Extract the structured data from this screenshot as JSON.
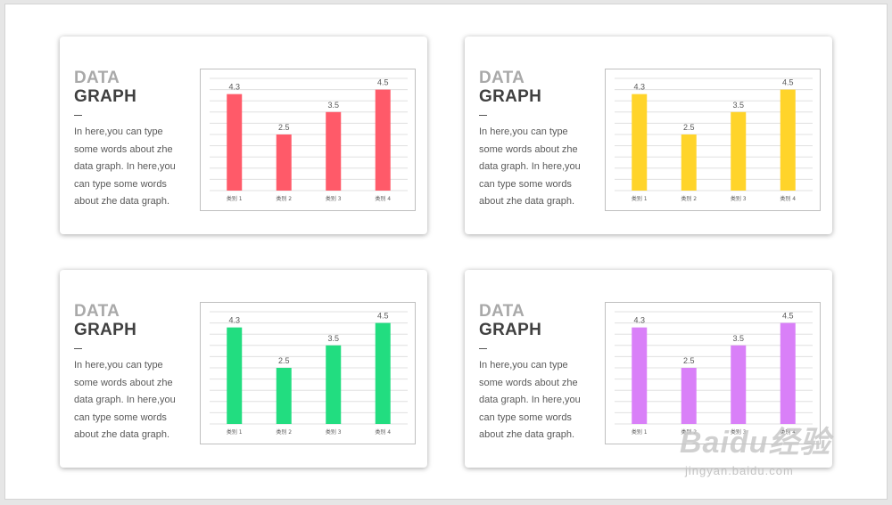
{
  "cards": [
    {
      "title_line1": "DATA",
      "title_line2": "GRAPH",
      "dash": "—",
      "body": "In here,you can type some words about zhe data graph. In here,you can type some words about zhe data graph.",
      "color": "#ff5a69"
    },
    {
      "title_line1": "DATA",
      "title_line2": "GRAPH",
      "dash": "—",
      "body": "In here,you can type some words about zhe data graph. In here,you can type some words about zhe data graph.",
      "color": "#ffd42a"
    },
    {
      "title_line1": "DATA",
      "title_line2": "GRAPH",
      "dash": "—",
      "body": "In here,you can type some words about zhe data graph. In here,you can type some words about zhe data graph.",
      "color": "#22dd80"
    },
    {
      "title_line1": "DATA",
      "title_line2": "GRAPH",
      "dash": "—",
      "body": "In here,you can type some words about zhe data graph. In here,you can type some words about zhe data graph.",
      "color": "#d980f8"
    }
  ],
  "chart_data": [
    {
      "type": "bar",
      "categories": [
        "类别 1",
        "类别 2",
        "类别 3",
        "类别 4"
      ],
      "values": [
        4.3,
        2.5,
        3.5,
        4.5
      ],
      "data_labels": [
        "4.3",
        "2.5",
        "3.5",
        "4.5"
      ],
      "ylim": [
        0,
        5
      ],
      "grid": true,
      "legend": "none",
      "color": "#ff5a69"
    },
    {
      "type": "bar",
      "categories": [
        "类别 1",
        "类别 2",
        "类别 3",
        "类别 4"
      ],
      "values": [
        4.3,
        2.5,
        3.5,
        4.5
      ],
      "data_labels": [
        "4.3",
        "2.5",
        "3.5",
        "4.5"
      ],
      "ylim": [
        0,
        5
      ],
      "grid": true,
      "legend": "none",
      "color": "#ffd42a"
    },
    {
      "type": "bar",
      "categories": [
        "类别 1",
        "类别 2",
        "类别 3",
        "类别 4"
      ],
      "values": [
        4.3,
        2.5,
        3.5,
        4.5
      ],
      "data_labels": [
        "4.3",
        "2.5",
        "3.5",
        "4.5"
      ],
      "ylim": [
        0,
        5
      ],
      "grid": true,
      "legend": "none",
      "color": "#22dd80"
    },
    {
      "type": "bar",
      "categories": [
        "类别 1",
        "类别 2",
        "类别 3",
        "类别 4"
      ],
      "values": [
        4.3,
        2.5,
        3.5,
        4.5
      ],
      "data_labels": [
        "4.3",
        "2.5",
        "3.5",
        "4.5"
      ],
      "ylim": [
        0,
        5
      ],
      "grid": true,
      "legend": "none",
      "color": "#d980f8"
    }
  ],
  "watermark": {
    "brand": "Baidu经验",
    "url": "jingyan.baidu.com"
  }
}
